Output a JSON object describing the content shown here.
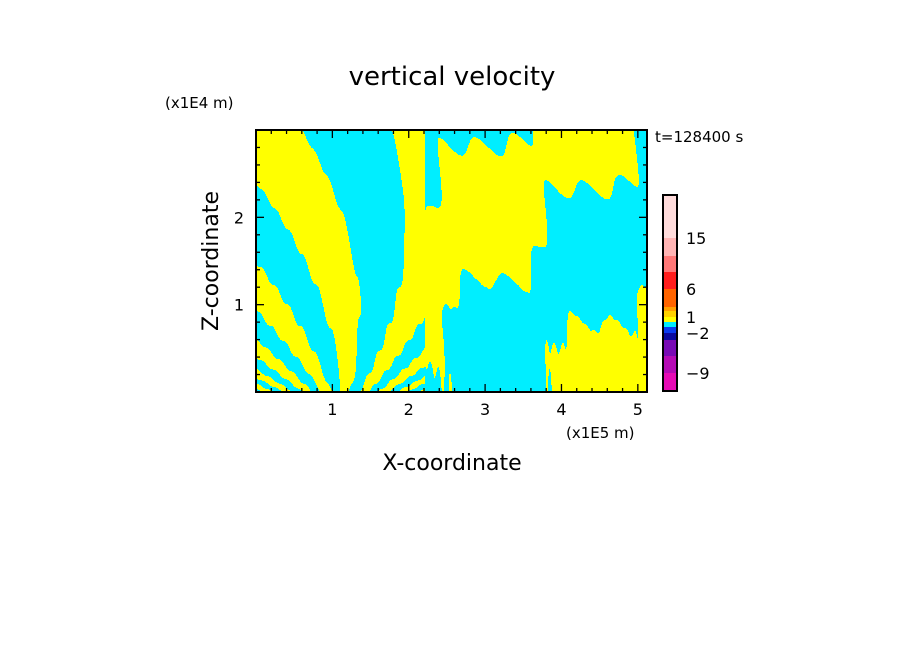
{
  "chart_data": {
    "type": "heatmap",
    "title": "vertical velocity",
    "xlabel": "X-coordinate",
    "ylabel": "Z-coordinate",
    "x_unit": "(x1E5 m)",
    "y_unit": "(x1E4 m)",
    "time_label": "t=128400 s",
    "xlim": [
      0,
      5.12
    ],
    "ylim": [
      0,
      3
    ],
    "x_ticks": [
      "1",
      "2",
      "3",
      "4",
      "5"
    ],
    "y_ticks": [
      "1",
      "2"
    ],
    "x_minor_step": 0.2,
    "y_minor_step": 0.2,
    "dominant_colors": {
      "positive": "#ffff00",
      "negative": "#00eeff"
    },
    "colorbar": {
      "levels": [
        -12,
        -9,
        -6,
        -3,
        -2,
        -1,
        0,
        1,
        2,
        3,
        6,
        9,
        12,
        15,
        20
      ],
      "colors": [
        "#e60ab4",
        "#b40ab4",
        "#780ab4",
        "#0a0aa0",
        "#0a3cf0",
        "#00eeff",
        "#ffff00",
        "#ffd200",
        "#ffa000",
        "#ff6400",
        "#ff1e1e",
        "#ff7878",
        "#ffb4b4",
        "#ffdcdc"
      ],
      "tick_labels": [
        {
          "value": -9,
          "label": "−9"
        },
        {
          "value": -2,
          "label": "−2"
        },
        {
          "value": 1,
          "label": "1"
        },
        {
          "value": 6,
          "label": "6"
        },
        {
          "value": 15,
          "label": "15"
        }
      ]
    }
  }
}
